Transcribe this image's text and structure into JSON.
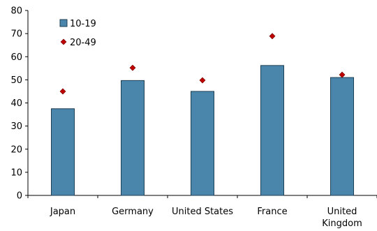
{
  "chart_data": {
    "type": "bar",
    "categories": [
      [
        "Japan"
      ],
      [
        "Germany"
      ],
      [
        "United States"
      ],
      [
        "France"
      ],
      [
        "United",
        "Kingdom"
      ]
    ],
    "series": [
      {
        "name": "10-19",
        "kind": "bar",
        "values": [
          37.5,
          49.7,
          45.0,
          56.2,
          51.0
        ],
        "color": "#4a86ab"
      },
      {
        "name": "20-49",
        "kind": "marker",
        "values": [
          45.0,
          55.2,
          49.8,
          68.9,
          52.2
        ],
        "color": "#c00000"
      }
    ],
    "ylim": [
      0,
      80
    ],
    "yticks": [
      0,
      10,
      20,
      30,
      40,
      50,
      60,
      70,
      80
    ],
    "grid": false,
    "legend": "top-left"
  }
}
